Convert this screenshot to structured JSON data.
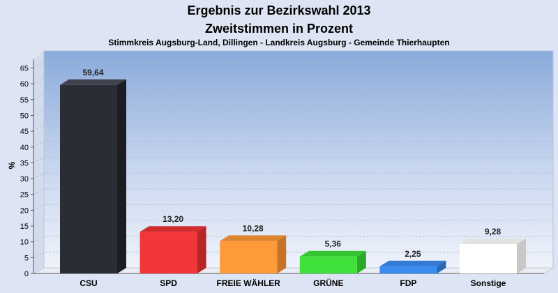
{
  "chart_data": {
    "type": "bar",
    "title": "Ergebnis zur Bezirkswahl 2013",
    "subtitle": "Zweitstimmen in Prozent",
    "caption": "Stimmkreis Augsburg-Land, Dillingen - Landkreis Augsburg - Gemeinde Thierhaupten",
    "xlabel": "",
    "ylabel": "%",
    "ylim": [
      0,
      65
    ],
    "yticks": [
      0,
      5,
      10,
      15,
      20,
      25,
      30,
      35,
      40,
      45,
      50,
      55,
      60,
      65
    ],
    "grid": true,
    "categories": [
      "CSU",
      "SPD",
      "FREIE WÄHLER",
      "GRÜNE",
      "FDP",
      "Sonstige"
    ],
    "values": [
      59.64,
      13.2,
      10.28,
      5.36,
      2.25,
      9.28
    ],
    "value_labels": [
      "59,64",
      "13,20",
      "10,28",
      "5,36",
      "2,25",
      "9,28"
    ],
    "colors": [
      "#2b2d35",
      "#f2373a",
      "#ff9a3a",
      "#3fe23a",
      "#3a8cf0",
      "#ffffff"
    ],
    "side_colors": [
      "#1c1d23",
      "#b72527",
      "#c6732a",
      "#2ca828",
      "#2a68b4",
      "#c8c8c8"
    ],
    "top_colors": [
      "#3f424c",
      "#d02c2e",
      "#de8530",
      "#34c531",
      "#3479d2",
      "#e2e2e2"
    ]
  }
}
